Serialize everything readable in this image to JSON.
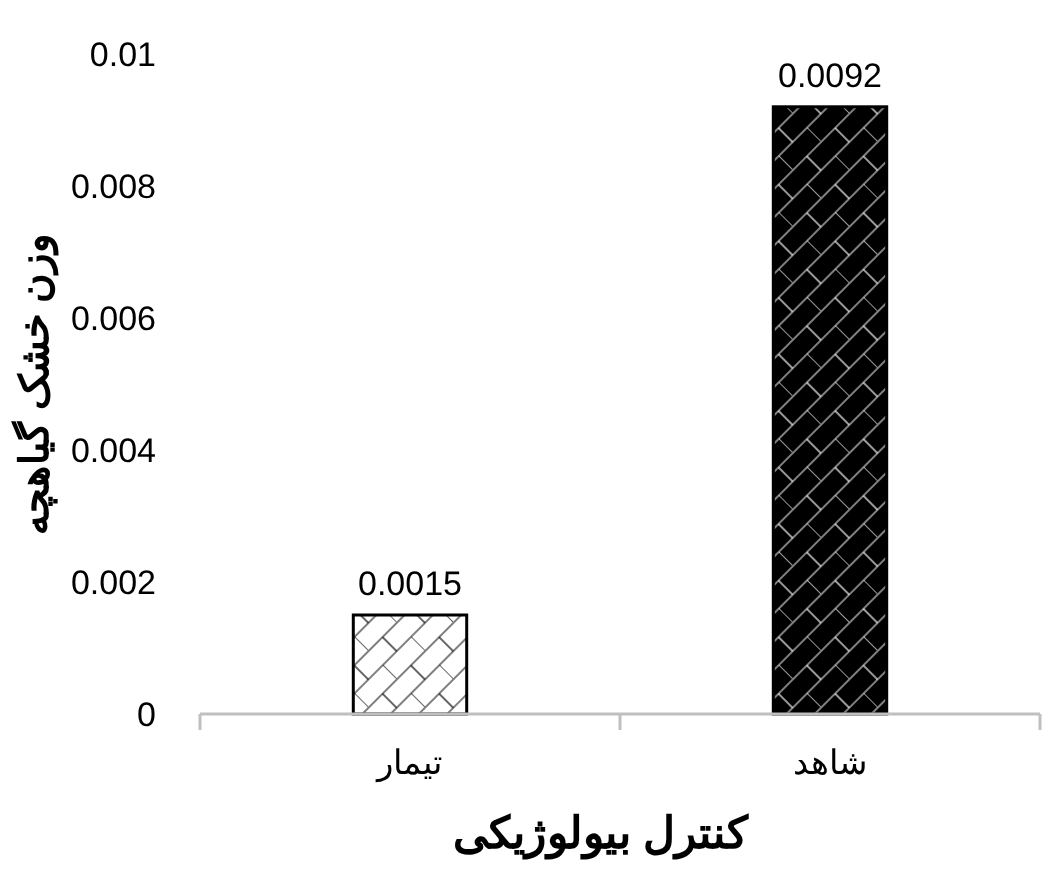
{
  "chart_data": {
    "type": "bar",
    "xlabel": "کنترل بیولوژیکی",
    "ylabel": "وزن خشک گیاهچه",
    "categories": [
      "تیمار",
      "شاهد"
    ],
    "values": [
      0.0015,
      0.0092
    ],
    "colors": [
      "#ffffff",
      "#000000"
    ],
    "ylim": [
      0,
      0.01
    ],
    "yticks": [
      0,
      0.002,
      0.004,
      0.006,
      0.008,
      0.01
    ],
    "data_labels": true,
    "grid": false
  }
}
